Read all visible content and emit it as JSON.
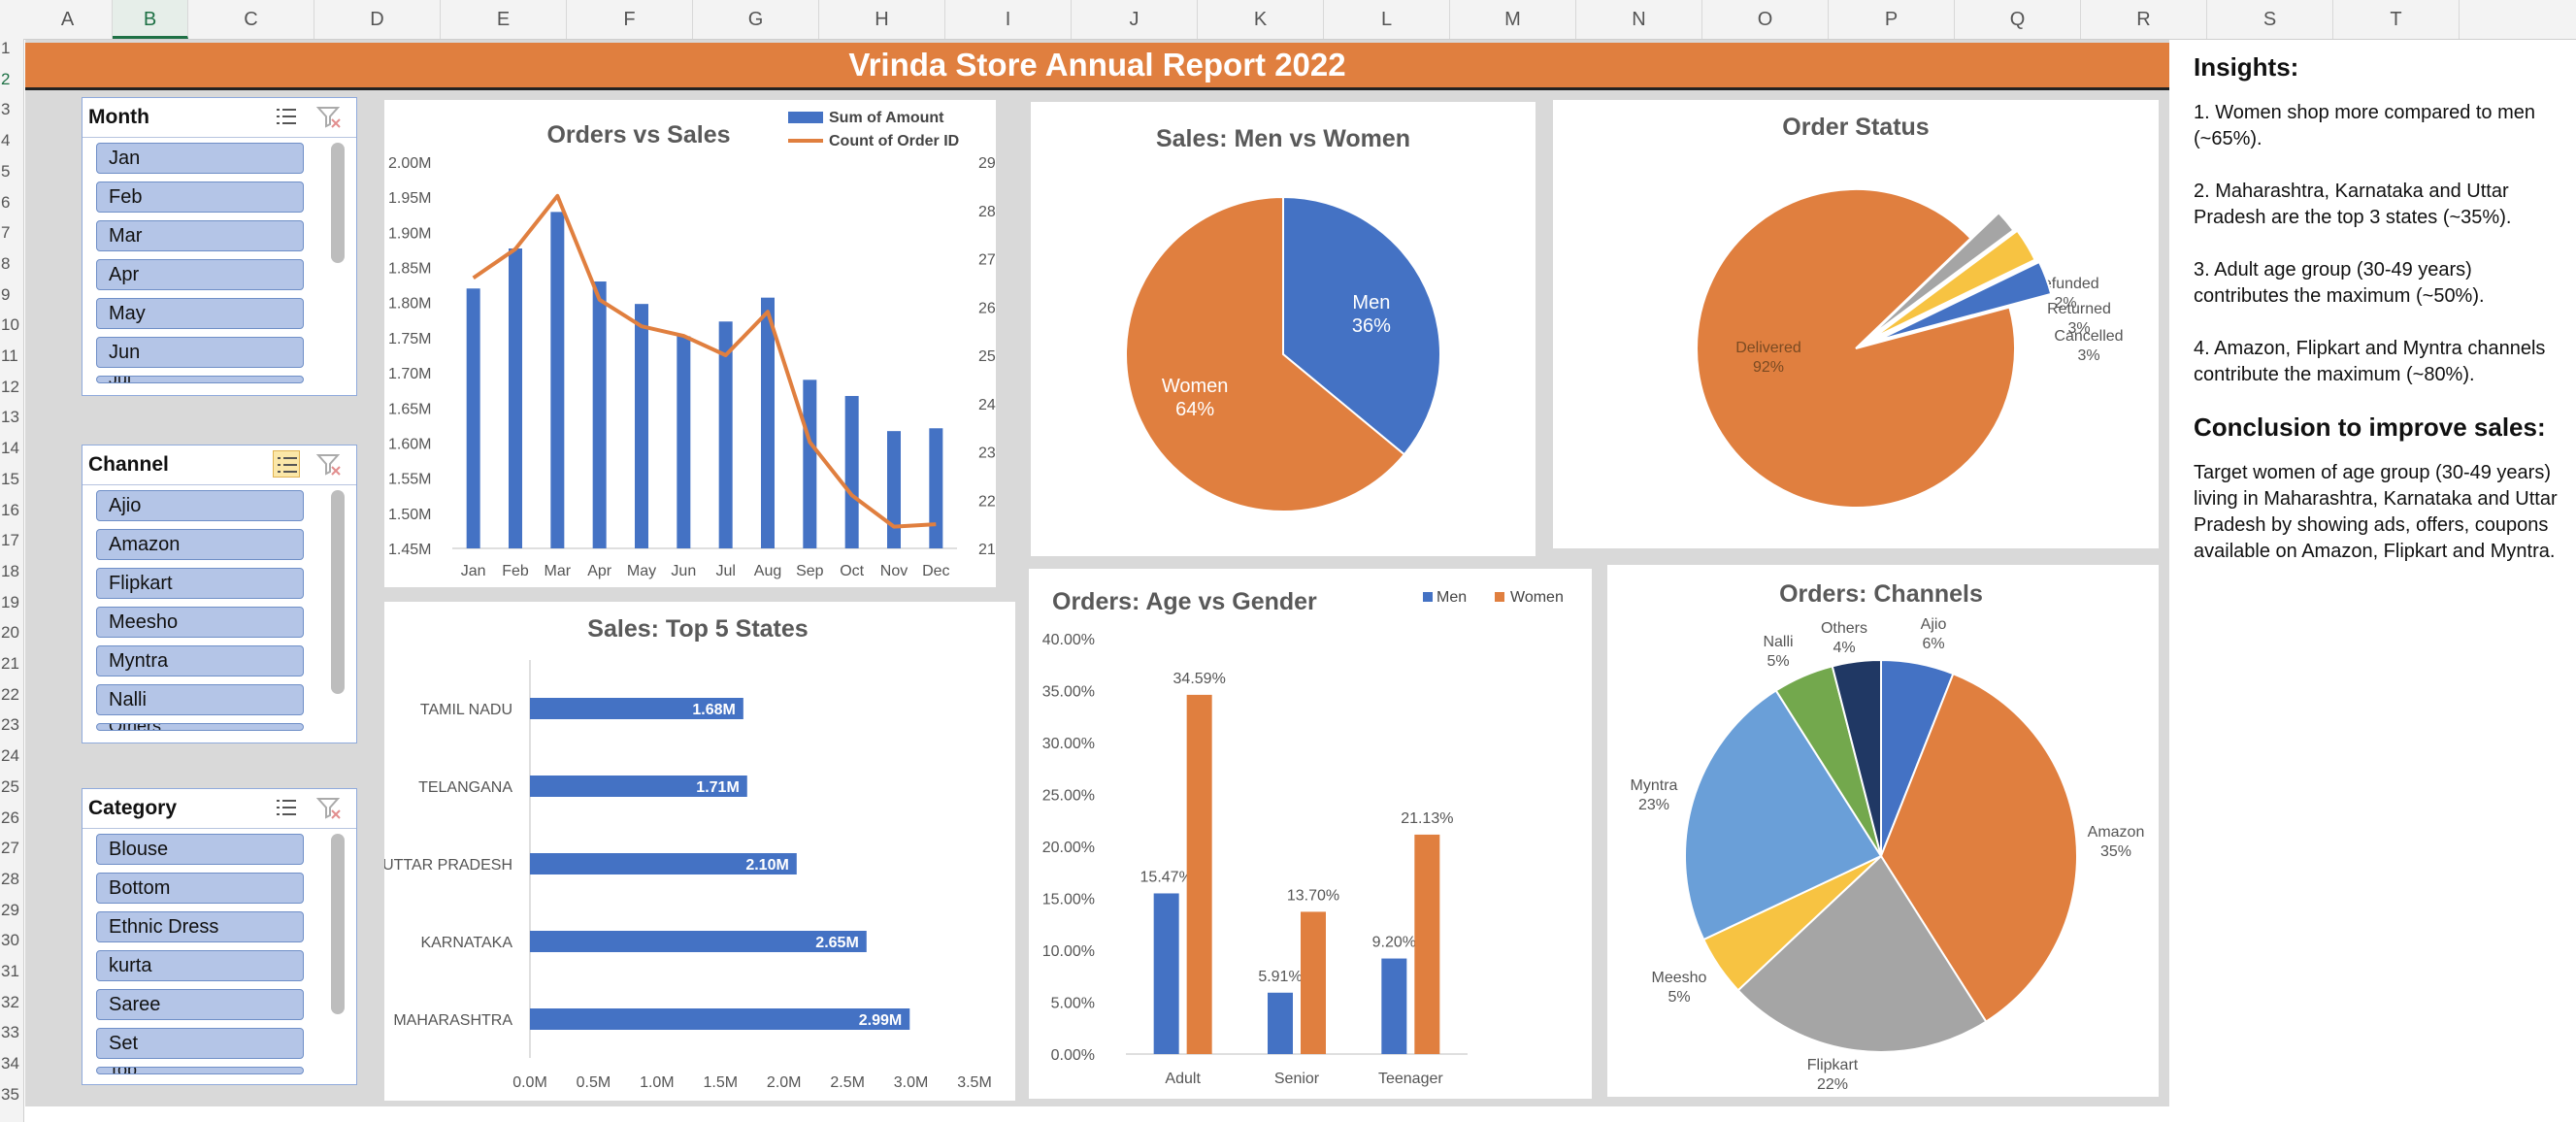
{
  "sheet": {
    "columns": [
      "A",
      "B",
      "C",
      "D",
      "E",
      "F",
      "G",
      "H",
      "I",
      "J",
      "K",
      "L",
      "M",
      "N",
      "O",
      "P",
      "Q",
      "R",
      "S",
      "T"
    ],
    "rows": [
      "1",
      "2",
      "3",
      "4",
      "5",
      "6",
      "7",
      "8",
      "9",
      "10",
      "11",
      "12",
      "13",
      "14",
      "15",
      "16",
      "17",
      "18",
      "19",
      "20",
      "21",
      "22",
      "23",
      "24",
      "25",
      "26",
      "27",
      "28",
      "29",
      "30",
      "31",
      "32",
      "33",
      "34",
      "35"
    ]
  },
  "title": "Vrinda Store Annual Report 2022",
  "slicers": {
    "month": {
      "title": "Month",
      "items": [
        "Jan",
        "Feb",
        "Mar",
        "Apr",
        "May",
        "Jun",
        "Jul"
      ]
    },
    "channel": {
      "title": "Channel",
      "items": [
        "Ajio",
        "Amazon",
        "Flipkart",
        "Meesho",
        "Myntra",
        "Nalli",
        "Others"
      ]
    },
    "category": {
      "title": "Category",
      "items": [
        "Blouse",
        "Bottom",
        "Ethnic Dress",
        "kurta",
        "Saree",
        "Set",
        "Top"
      ]
    }
  },
  "insights": {
    "heading": "Insights:",
    "points": [
      "1. Women shop more compared to men (~65%).",
      "2. Maharashtra, Karnataka and Uttar Pradesh are the top 3 states (~35%).",
      "3. Adult age group (30-49 years) contributes the maximum (~50%).",
      "4. Amazon, Flipkart and Myntra channels contribute the maximum (~80%)."
    ],
    "conclusion_heading": "Conclusion to improve sales:",
    "conclusion": "Target women of age group (30-49 years) living in Maharashtra, Karnataka and Uttar Pradesh by showing ads, offers, coupons available on Amazon, Flipkart and Myntra."
  },
  "colors": {
    "blue": "#4472c4",
    "orange": "#e07f3f",
    "banner": "#e07f3f",
    "gray": "#a5a5a5",
    "yellow": "#f7c342",
    "lightblue": "#6a9fd8",
    "green": "#73a84d",
    "navy": "#203864"
  },
  "chart_data": [
    {
      "id": "orders_vs_sales",
      "type": "bar",
      "title": "Orders vs Sales",
      "categories": [
        "Jan",
        "Feb",
        "Mar",
        "Apr",
        "May",
        "Jun",
        "Jul",
        "Aug",
        "Sep",
        "Oct",
        "Nov",
        "Dec"
      ],
      "series": [
        {
          "name": "Sum of Amount",
          "type": "bar",
          "axis": "left",
          "values": [
            1820000,
            1877000,
            1929000,
            1830000,
            1798000,
            1752000,
            1773000,
            1807000,
            1690000,
            1667000,
            1617000,
            1621000
          ]
        },
        {
          "name": "Count of Order ID",
          "type": "line",
          "axis": "right",
          "values": [
            2660,
            2720,
            2830,
            2615,
            2560,
            2540,
            2500,
            2590,
            2320,
            2210,
            2145,
            2150
          ]
        }
      ],
      "ylim": [
        1450000,
        2000000
      ],
      "yticks": [
        "1.45M",
        "1.50M",
        "1.55M",
        "1.60M",
        "1.65M",
        "1.70M",
        "1.75M",
        "1.80M",
        "1.85M",
        "1.90M",
        "1.95M",
        "2.00M"
      ],
      "y2lim": [
        2100,
        2900
      ],
      "y2ticks": [
        "2100",
        "2200",
        "2300",
        "2400",
        "2500",
        "2600",
        "2700",
        "2800",
        "2900"
      ],
      "legend": "top-right"
    },
    {
      "id": "sales_men_women",
      "type": "pie",
      "title": "Sales: Men vs Women",
      "slices": [
        {
          "label": "Men",
          "value": 36,
          "display": "36%"
        },
        {
          "label": "Women",
          "value": 64,
          "display": "64%"
        }
      ]
    },
    {
      "id": "order_status",
      "type": "pie",
      "title": "Order Status",
      "slices": [
        {
          "label": "Delivered",
          "value": 92,
          "display": "92%"
        },
        {
          "label": "Refunded",
          "value": 2,
          "display": "2%"
        },
        {
          "label": "Returned",
          "value": 3,
          "display": "3%"
        },
        {
          "label": "Cancelled",
          "value": 3,
          "display": "3%"
        }
      ]
    },
    {
      "id": "top_states",
      "type": "bar",
      "orientation": "horizontal",
      "title": "Sales: Top 5 States",
      "categories": [
        "TAMIL NADU",
        "TELANGANA",
        "UTTAR PRADESH",
        "KARNATAKA",
        "MAHARASHTRA"
      ],
      "values": [
        1680000,
        1710000,
        2100000,
        2650000,
        2990000
      ],
      "labels": [
        "1.68M",
        "1.71M",
        "2.10M",
        "2.65M",
        "2.99M"
      ],
      "xlim": [
        0,
        3500000
      ],
      "xticks": [
        "0.0M",
        "0.5M",
        "1.0M",
        "1.5M",
        "2.0M",
        "2.5M",
        "3.0M",
        "3.5M"
      ]
    },
    {
      "id": "age_gender",
      "type": "bar",
      "title": "Orders: Age vs Gender",
      "categories": [
        "Adult",
        "Senior",
        "Teenager"
      ],
      "series": [
        {
          "name": "Men",
          "values": [
            15.47,
            5.91,
            9.2
          ],
          "labels": [
            "15.47%",
            "5.91%",
            "9.20%"
          ]
        },
        {
          "name": "Women",
          "values": [
            34.59,
            13.7,
            21.13
          ],
          "labels": [
            "34.59%",
            "13.70%",
            "21.13%"
          ]
        }
      ],
      "ylim": [
        0,
        40
      ],
      "yticks": [
        "0.00%",
        "5.00%",
        "10.00%",
        "15.00%",
        "20.00%",
        "25.00%",
        "30.00%",
        "35.00%",
        "40.00%"
      ],
      "legend": "top-right"
    },
    {
      "id": "channels",
      "type": "pie",
      "title": "Orders: Channels",
      "slices": [
        {
          "label": "Ajio",
          "value": 6,
          "display": "6%"
        },
        {
          "label": "Amazon",
          "value": 35,
          "display": "35%"
        },
        {
          "label": "Flipkart",
          "value": 22,
          "display": "22%"
        },
        {
          "label": "Meesho",
          "value": 5,
          "display": "5%"
        },
        {
          "label": "Myntra",
          "value": 23,
          "display": "23%"
        },
        {
          "label": "Nalli",
          "value": 5,
          "display": "5%"
        },
        {
          "label": "Others",
          "value": 4,
          "display": "4%"
        }
      ]
    }
  ]
}
